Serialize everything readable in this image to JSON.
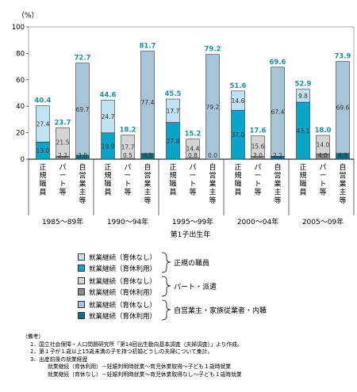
{
  "chart_data": {
    "type": "bar",
    "unit_label": "（%）",
    "ylim": [
      0,
      100
    ],
    "yticks": [
      0,
      20,
      40,
      60,
      80,
      100
    ],
    "grid": false,
    "xlabel": "第1子出生年",
    "periods": [
      "1985～89年",
      "1990～94年",
      "1995～99年",
      "2000～04年",
      "2005～09年"
    ],
    "bar_labels": [
      "正規職員",
      "パート等",
      "自営業主等"
    ],
    "groups": [
      {
        "period": "1985～89年",
        "bars": [
          {
            "category": "正規職員",
            "with_leave": 13.0,
            "without_leave": 27.4,
            "total": 40.4
          },
          {
            "category": "パート等",
            "with_leave": 2.2,
            "without_leave": 21.5,
            "total": 23.7
          },
          {
            "category": "自営業主等",
            "with_leave": 3.0,
            "without_leave": 69.7,
            "total": 72.7
          }
        ]
      },
      {
        "period": "1990～94年",
        "bars": [
          {
            "category": "正規職員",
            "with_leave": 19.9,
            "without_leave": 24.7,
            "total": 44.6
          },
          {
            "category": "パート等",
            "with_leave": 0.5,
            "without_leave": 17.7,
            "total": 18.2
          },
          {
            "category": "自営業主等",
            "with_leave": 4.3,
            "without_leave": 77.4,
            "total": 81.7
          }
        ]
      },
      {
        "period": "1995～99年",
        "bars": [
          {
            "category": "正規職員",
            "with_leave": 27.8,
            "without_leave": 17.7,
            "total": 45.5
          },
          {
            "category": "パート等",
            "with_leave": 0.8,
            "without_leave": 14.4,
            "total": 15.2
          },
          {
            "category": "自営業主等",
            "with_leave": 0.0,
            "without_leave": 79.2,
            "total": 79.2
          }
        ]
      },
      {
        "period": "2000～04年",
        "bars": [
          {
            "category": "正規職員",
            "with_leave": 37.0,
            "without_leave": 14.6,
            "total": 51.6
          },
          {
            "category": "パート等",
            "with_leave": 2.0,
            "without_leave": 15.6,
            "total": 17.6
          },
          {
            "category": "自営業主等",
            "with_leave": 2.2,
            "without_leave": 67.4,
            "total": 69.6
          }
        ]
      },
      {
        "period": "2005～09年",
        "bars": [
          {
            "category": "正規職員",
            "with_leave": 43.1,
            "without_leave": 9.8,
            "total": 52.9
          },
          {
            "category": "パート等",
            "with_leave": 4.0,
            "without_leave": 14.0,
            "total": 18.0
          },
          {
            "category": "自営業主等",
            "with_leave": 4.3,
            "without_leave": 69.6,
            "total": 73.9
          }
        ]
      }
    ],
    "total_label_color": "#1a8fa3"
  },
  "legend": {
    "groups": [
      {
        "name": "正規の職員",
        "entries": [
          {
            "label": "就業継続（育休なし）",
            "color": "#bfe3f2"
          },
          {
            "label": "就業継続（育休利用）",
            "color": "#0aa4c8"
          }
        ]
      },
      {
        "name": "パート・派遣",
        "entries": [
          {
            "label": "就業継続（育休なし）",
            "color": "#d4d4d4"
          },
          {
            "label": "就業継続（育休利用）",
            "color": "#8a8a8a"
          }
        ]
      },
      {
        "name": "自営業主・家族従業者・内職",
        "entries": [
          {
            "label": "就業継続（育休なし）",
            "color": "#a8c4d8"
          },
          {
            "label": "就業継続（育休利用）",
            "color": "#0e6f86"
          }
        ]
      }
    ]
  },
  "notes": {
    "heading": "（備考）",
    "items": [
      "1．国立社会保障・人口問題研究所「第14回出生動向基本調査（夫婦調査）」より作成。",
      "2．第１子が１歳以上15歳未満の子を持つ初婚どうしの夫婦について集計。",
      "3．出産前後の就業経歴"
    ],
    "sub_items": [
      "就業継続（育休利用）－妊娠判明時就業～育児休業取得～子ども１歳時就業",
      "就業継続（育休なし）－妊娠判明時就業～育児休業取得なし～子ども１歳時就業"
    ]
  }
}
